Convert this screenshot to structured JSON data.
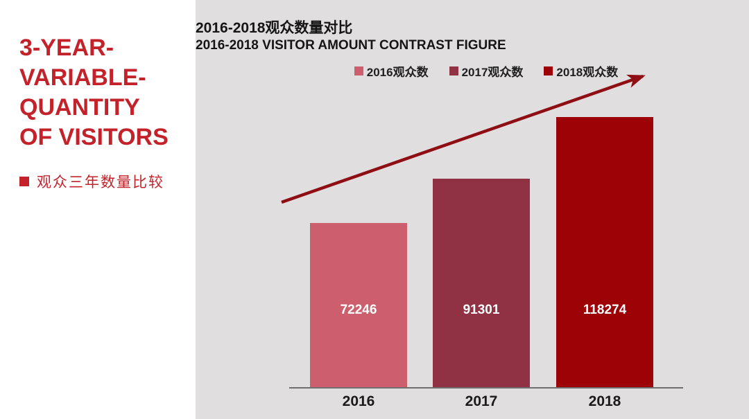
{
  "left_panel": {
    "title": "3-YEAR-\nVARIABLE-\nQUANTITY\nOF VISITORS",
    "bullet_label": "观众三年数量比较",
    "accent_color": "#c4222a"
  },
  "chart_data": {
    "type": "bar",
    "title": "2016-2018观众数量对比",
    "subtitle": "2016-2018 VISITOR AMOUNT CONTRAST FIGURE",
    "categories": [
      "2016",
      "2017",
      "2018"
    ],
    "values": [
      72246,
      91301,
      118274
    ],
    "series_colors": [
      "#cd5e6d",
      "#903243",
      "#9c0206"
    ],
    "legend": [
      "2016观众数",
      "2017观众数",
      "2018观众数"
    ],
    "legend_position": "top-center",
    "ylim": [
      0,
      130000
    ],
    "grid": false,
    "xlabel": "",
    "ylabel": "",
    "data_label_color": "#ffffff",
    "axis_line_color": "#6f6f6f",
    "background_color": "#e0dedf",
    "annotations": [
      {
        "type": "arrow",
        "description": "upward trend arrow across bars",
        "color": "#8e0e13"
      }
    ]
  }
}
